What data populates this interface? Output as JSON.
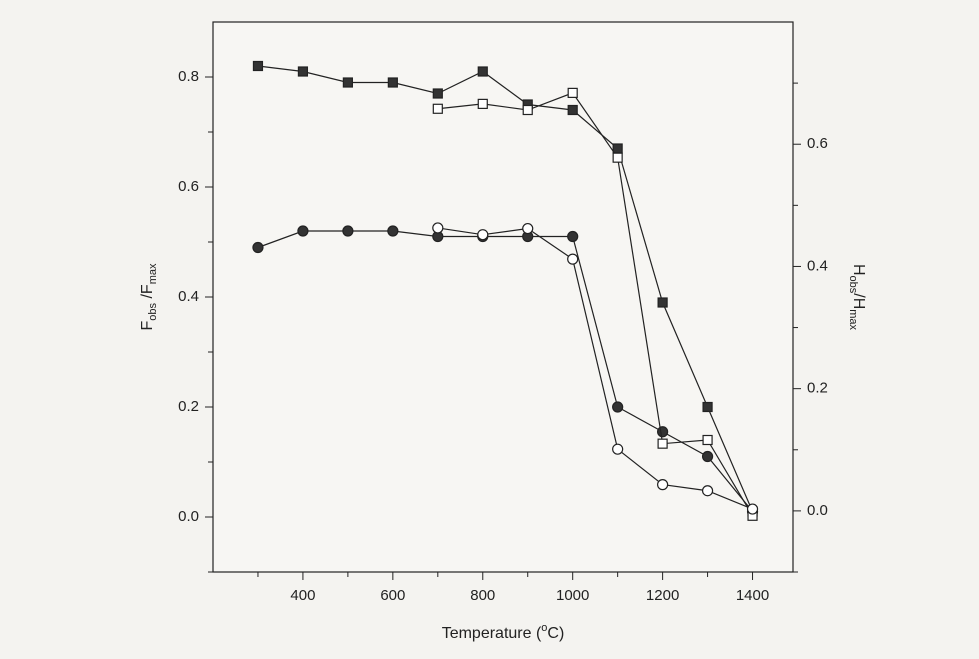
{
  "chart_data": {
    "type": "line",
    "xlabel": [
      "Temperature (",
      "o",
      "C)"
    ],
    "ylabel": [
      "F",
      "obs",
      " /F",
      "max"
    ],
    "y2label": [
      "H",
      "obs",
      "/H",
      "max"
    ],
    "xlim": [
      200,
      1490
    ],
    "ylim": [
      -0.1,
      0.9
    ],
    "y2lim": [
      -0.1,
      0.8
    ],
    "xticks": [
      400,
      600,
      800,
      1000,
      1200,
      1400
    ],
    "xminorticks": [
      300,
      500,
      700,
      900,
      1100,
      1300
    ],
    "yticks": [
      {
        "value": 0,
        "label": "0.0"
      },
      {
        "value": 0.2,
        "label": "0.2"
      },
      {
        "value": 0.4,
        "label": "0.4"
      },
      {
        "value": 0.6,
        "label": "0.6"
      },
      {
        "value": 0.8,
        "label": "0.8"
      }
    ],
    "yminorticks": [
      -0.1,
      0.1,
      0.3,
      0.5,
      0.7
    ],
    "y2ticks": [
      {
        "value": 0,
        "label": "0.0"
      },
      {
        "value": 0.2,
        "label": "0.2"
      },
      {
        "value": 0.4,
        "label": "0.4"
      },
      {
        "value": 0.6,
        "label": "0.6"
      }
    ],
    "y2minorticks": [
      -0.1,
      0.1,
      0.3,
      0.5,
      0.7
    ],
    "series": [
      {
        "marker": "square",
        "color": "#333333",
        "x": [
          300,
          400,
          500,
          600,
          700,
          800,
          900,
          1000,
          1100,
          1200,
          1300,
          1400
        ],
        "values": [
          0.82,
          0.81,
          0.79,
          0.79,
          0.77,
          0.81,
          0.75,
          0.74,
          0.67,
          0.39,
          0.2,
          0.01
        ]
      },
      {
        "marker": "circle",
        "color": "#333333",
        "x": [
          300,
          400,
          500,
          600,
          700,
          800,
          900,
          1000,
          1100,
          1200,
          1300,
          1400
        ],
        "values": [
          0.49,
          0.52,
          0.52,
          0.52,
          0.51,
          0.51,
          0.51,
          0.51,
          0.2,
          0.155,
          0.11,
          0.01
        ]
      },
      {
        "marker": "square",
        "color": "#ffffff",
        "axis": "y2",
        "x": [
          700,
          800,
          900,
          1000,
          1100,
          1200,
          1300,
          1400
        ],
        "values": [
          0.658,
          0.666,
          0.656,
          0.684,
          0.578,
          0.11,
          0.116,
          -0.008
        ]
      },
      {
        "marker": "circle",
        "color": "#ffffff",
        "axis": "y2",
        "x": [
          700,
          800,
          900,
          1000,
          1100,
          1200,
          1300,
          1400
        ],
        "values": [
          0.463,
          0.452,
          0.462,
          0.412,
          0.101,
          0.043,
          0.033,
          0.003
        ]
      }
    ]
  }
}
